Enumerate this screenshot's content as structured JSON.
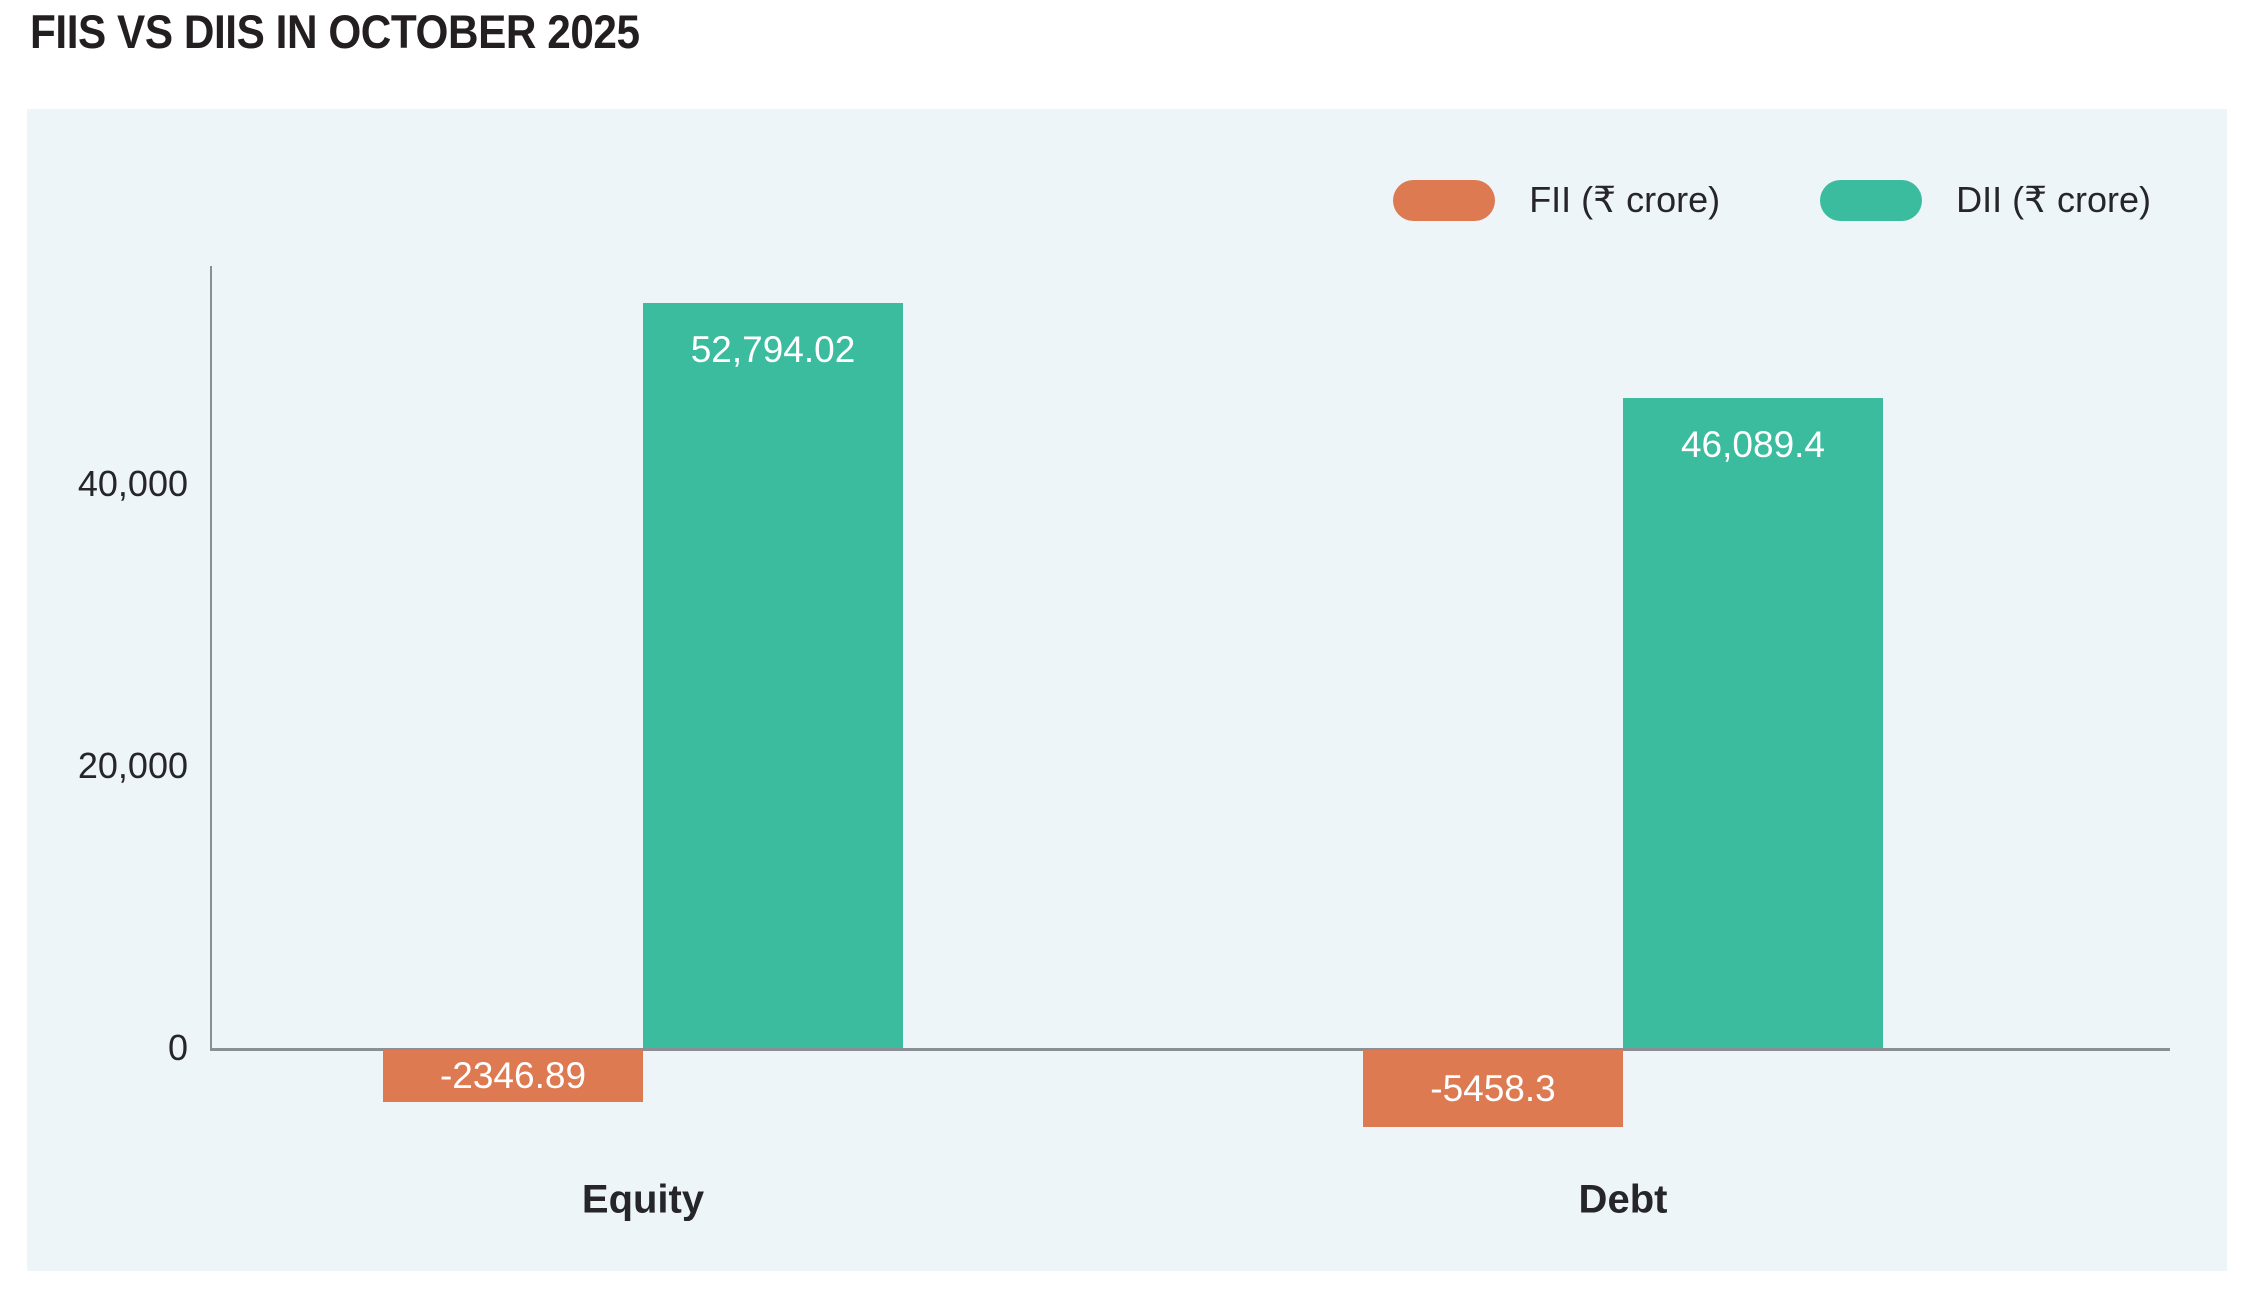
{
  "page": {
    "title": "FIIS VS DIIS IN OCTOBER 2025"
  },
  "colors": {
    "panel_bg": "#edf5f9",
    "axis": "#8b8f95",
    "fii": "#dd7a52",
    "dii": "#3cbc9e",
    "title_text": "#231f20",
    "label_text": "#26262a",
    "bar_label_text": "#ffffff"
  },
  "chart_data": {
    "type": "bar",
    "title": "FIIS VS DIIS IN OCTOBER 2025",
    "categories": [
      "Equity",
      "Debt"
    ],
    "series": [
      {
        "key": "fii",
        "name": "FII (₹ crore)",
        "color": "#dd7a52",
        "values": [
          -2346.89,
          -5458.3
        ],
        "labels": [
          "-2346.89",
          "-5458.3"
        ]
      },
      {
        "key": "dii",
        "name": "DII (₹ crore)",
        "color": "#3cbc9e",
        "values": [
          52794.02,
          46089.4
        ],
        "labels": [
          "52,794.02",
          "46,089.4"
        ]
      }
    ],
    "yticks": [
      0,
      20000,
      40000
    ],
    "ytick_labels": [
      "0",
      "20,000",
      "40,000"
    ],
    "ylim": [
      -8000,
      56000
    ],
    "xlabel": "",
    "ylabel": "",
    "grid": false,
    "legend_position": "top-right"
  }
}
